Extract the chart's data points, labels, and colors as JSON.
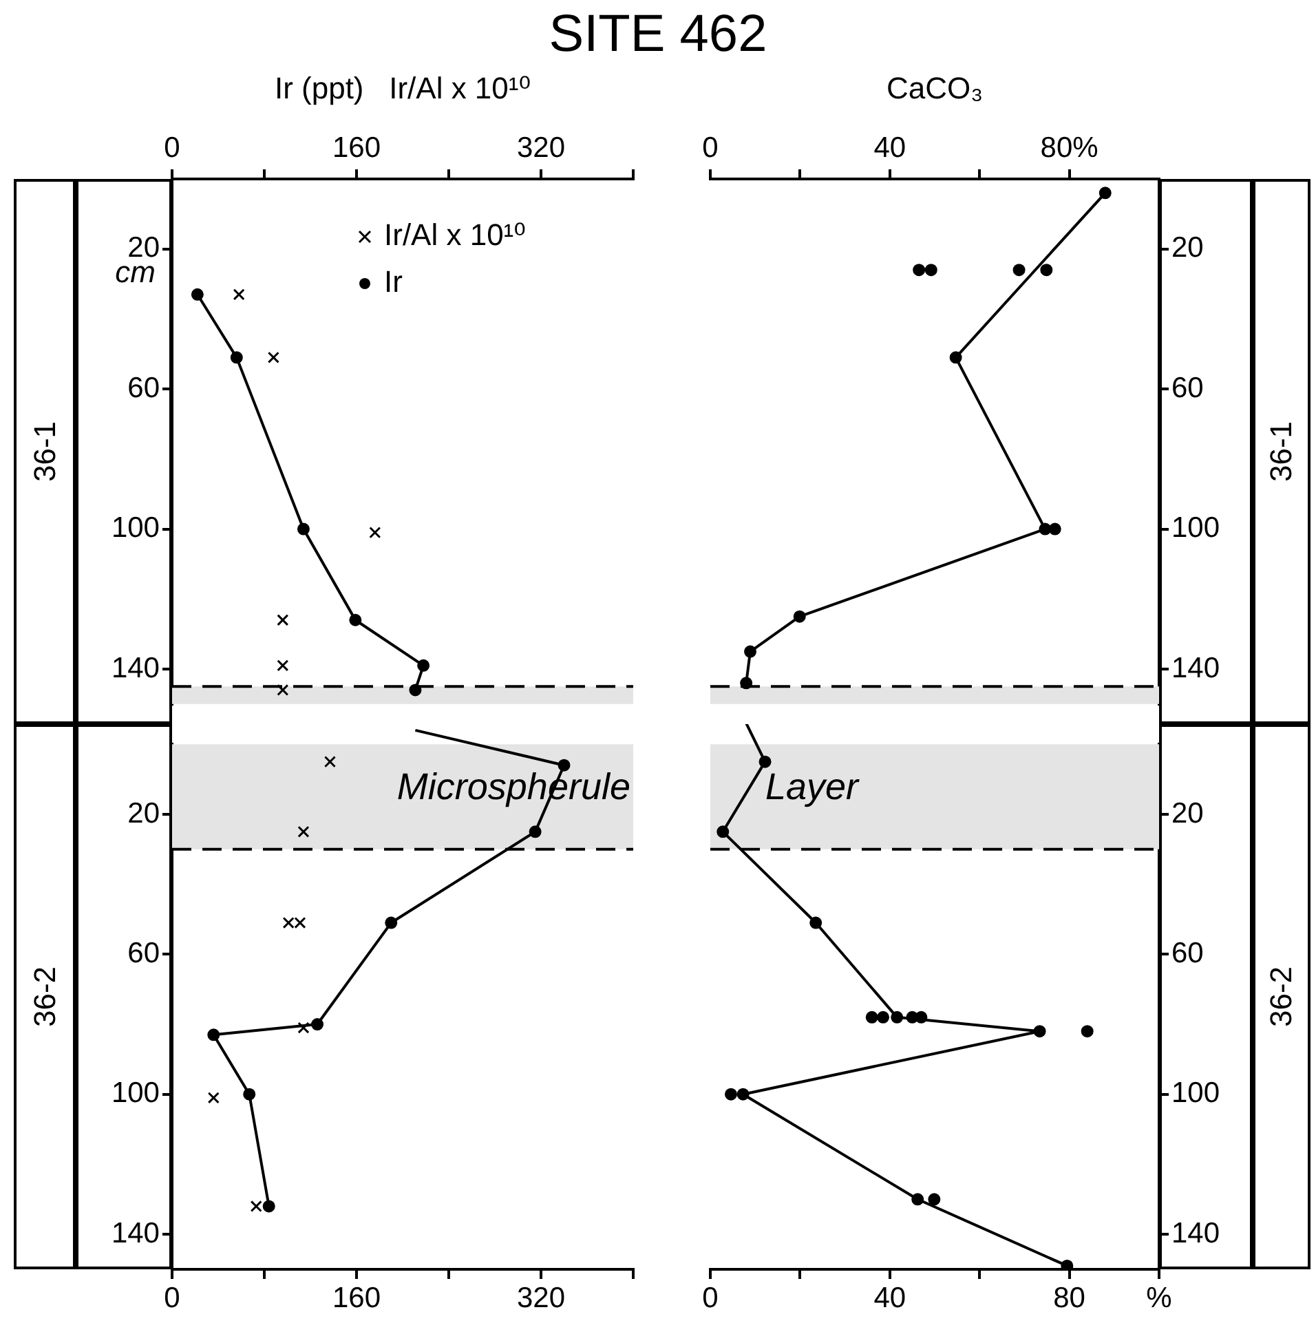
{
  "chart_data": [
    {
      "type": "line",
      "title": "SITE 462",
      "xlabel": "Ir (ppt)   Ir/Al x 10¹⁰",
      "ylabel": "cm",
      "legend": "top right",
      "xlim": [
        0,
        400
      ],
      "xticks": [
        0,
        {
          "value": 80,
          "label": null
        },
        160,
        {
          "value": 240,
          "label": null
        },
        320,
        {
          "value": 400,
          "label": null
        }
      ],
      "ylim": [
        150,
        0
      ],
      "yticks": [
        20,
        60,
        100,
        140
      ],
      "bands": [
        {
          "axis": "y",
          "from": 145,
          "to": 150,
          "color": "#e4e4e4"
        }
      ],
      "ref_lines": [
        {
          "axis": "y",
          "value": 145,
          "line_style": "dashed"
        }
      ],
      "annotations": [
        "36-1"
      ],
      "series": [
        {
          "name": "Ir/Al x 10¹⁰",
          "type": "scatter",
          "marker": "cross",
          "color": "#000000",
          "x": [
            58,
            88,
            176,
            96,
            96,
            96
          ],
          "values": [
            33,
            51,
            101,
            126,
            139,
            146
          ]
        },
        {
          "name": "Ir",
          "type": "line",
          "marker": "circle",
          "line_style": "solid",
          "color": "#000000",
          "x": [
            22,
            56,
            114,
            159,
            218,
            211
          ],
          "values": [
            33,
            51,
            100,
            126,
            139,
            146
          ]
        }
      ]
    },
    {
      "type": "line",
      "xlabel": "CaCO₃",
      "xlim": [
        0,
        100
      ],
      "xticks": [
        0,
        {
          "value": 20,
          "label": null
        },
        40,
        {
          "value": 60,
          "label": null
        },
        {
          "value": 80,
          "label": "80%"
        }
      ],
      "y2lim": [
        150,
        0
      ],
      "y2ticks": [
        20,
        60,
        100,
        140
      ],
      "bands": [
        {
          "axis": "y2",
          "from": 145,
          "to": 150,
          "color": "#e4e4e4"
        }
      ],
      "ref_lines": [
        {
          "axis": "y2",
          "value": 145,
          "line_style": "dashed"
        }
      ],
      "annotations": [
        "36-1"
      ],
      "series": [
        {
          "type": "line",
          "axis": "y2",
          "marker": "circle",
          "line_style": "solid",
          "color": "#000000",
          "x": [
            88,
            54.7,
            74.6,
            19.9,
            8.9,
            8
          ],
          "values": [
            4,
            51,
            100,
            125,
            135,
            144
          ]
        },
        {
          "type": "scatter",
          "axis": "y2",
          "marker": "circle",
          "color": "#000000",
          "x": [
            46.5,
            49.2,
            68.8,
            74.9,
            76.8
          ],
          "values": [
            26,
            26,
            26,
            26,
            100
          ]
        }
      ]
    },
    {
      "type": "line",
      "xlim": [
        0,
        400
      ],
      "xticks": [
        0,
        {
          "value": 80,
          "label": null
        },
        160,
        {
          "value": 240,
          "label": null
        },
        320,
        {
          "value": 400,
          "label": null
        }
      ],
      "ylim": [
        150,
        0
      ],
      "yticks": [
        20,
        60,
        100,
        140
      ],
      "bands": [
        {
          "axis": "y",
          "from": 0,
          "to": 30,
          "label": "Microspherule",
          "color": "#e4e4e4"
        }
      ],
      "ref_lines": [
        {
          "axis": "y",
          "value": 30,
          "line_style": "dashed"
        }
      ],
      "annotations": [
        "36-2"
      ],
      "series": [
        {
          "type": "scatter",
          "marker": "cross",
          "color": "#000000",
          "x": [
            137,
            114,
            101,
            111,
            114,
            36,
            73
          ],
          "values": [
            5,
            25,
            51,
            51,
            81,
            101,
            132
          ]
        },
        {
          "type": "line",
          "marker": "circle",
          "line_style": "solid",
          "color": "#000000",
          "x": [
            340,
            315,
            190,
            126,
            36,
            67,
            84
          ],
          "values": [
            6,
            25,
            51,
            80,
            83,
            100,
            132
          ]
        }
      ]
    },
    {
      "type": "line",
      "xlim": [
        0,
        100
      ],
      "xticks": [
        0,
        {
          "value": 20,
          "label": null
        },
        40,
        {
          "value": 60,
          "label": null
        },
        80,
        {
          "value": 100,
          "label": "%"
        }
      ],
      "y2lim": [
        150,
        0
      ],
      "y2ticks": [
        20,
        60,
        100,
        140
      ],
      "bands": [
        {
          "axis": "y2",
          "from": 0,
          "to": 30,
          "label": "Layer",
          "color": "#e4e4e4"
        }
      ],
      "ref_lines": [
        {
          "axis": "y2",
          "value": 30,
          "line_style": "dashed"
        }
      ],
      "annotations": [
        "36-2"
      ],
      "series": [
        {
          "type": "line",
          "axis": "y2",
          "marker": "circle",
          "line_style": "solid",
          "color": "#000000",
          "x": [
            12.2,
            2.8,
            23.5,
            41.6,
            73.4,
            7.3,
            46.2,
            79.5
          ],
          "values": [
            5,
            25,
            51,
            78,
            82,
            100,
            130,
            149
          ]
        },
        {
          "type": "scatter",
          "axis": "y2",
          "marker": "circle",
          "color": "#000000",
          "x": [
            36,
            38.5,
            45,
            47,
            84,
            4.6,
            49.9
          ],
          "values": [
            78,
            78,
            78,
            78,
            82,
            100,
            130
          ]
        }
      ]
    }
  ]
}
